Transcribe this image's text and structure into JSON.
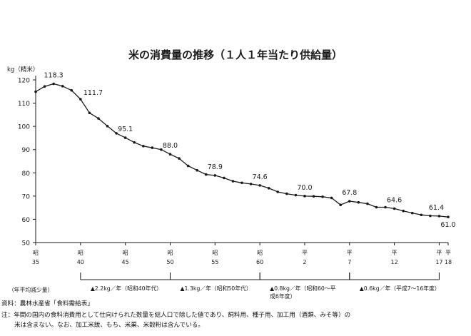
{
  "chart_data": {
    "type": "line",
    "title": "米の消費量の推移（１人１年当たり供給量）",
    "ylabel": "kg（精米）",
    "ylim": [
      50,
      120
    ],
    "yticks": [
      50,
      60,
      70,
      80,
      90,
      100,
      110,
      120
    ],
    "grid": false,
    "x_ticks": [
      {
        "era": "昭",
        "num": "35",
        "year": 1960
      },
      {
        "era": "昭",
        "num": "40",
        "year": 1965
      },
      {
        "era": "昭",
        "num": "45",
        "year": 1970
      },
      {
        "era": "昭",
        "num": "50",
        "year": 1975
      },
      {
        "era": "昭",
        "num": "55",
        "year": 1980
      },
      {
        "era": "昭",
        "num": "60",
        "year": 1985
      },
      {
        "era": "平",
        "num": "2",
        "year": 1990
      },
      {
        "era": "平",
        "num": "7",
        "year": 1995
      },
      {
        "era": "平",
        "num": "12",
        "year": 2000
      },
      {
        "era": "平",
        "num": "17",
        "year": 2005
      },
      {
        "era": "平",
        "num": "18",
        "year": 2006
      }
    ],
    "series": [
      {
        "x": [
          1960,
          1961,
          1962,
          1963,
          1964,
          1965,
          1966,
          1967,
          1968,
          1969,
          1970,
          1971,
          1972,
          1973,
          1974,
          1975,
          1976,
          1977,
          1978,
          1979,
          1980,
          1981,
          1982,
          1983,
          1984,
          1985,
          1986,
          1987,
          1988,
          1989,
          1990,
          1991,
          1992,
          1993,
          1994,
          1995,
          1996,
          1997,
          1998,
          1999,
          2000,
          2001,
          2002,
          2003,
          2004,
          2005,
          2006
        ],
        "y": [
          114.9,
          117.2,
          118.3,
          117.3,
          115.5,
          111.7,
          105.8,
          103.4,
          100.1,
          97.0,
          95.1,
          93.1,
          91.5,
          90.8,
          90.0,
          88.0,
          86.2,
          83.0,
          81.1,
          79.3,
          78.9,
          77.8,
          76.4,
          75.7,
          75.2,
          74.6,
          73.4,
          71.8,
          71.0,
          70.4,
          70.0,
          69.9,
          69.7,
          69.2,
          66.2,
          67.8,
          67.3,
          66.7,
          65.2,
          65.2,
          64.6,
          63.6,
          62.7,
          61.9,
          61.5,
          61.4,
          61.0
        ]
      }
    ],
    "data_labels": [
      {
        "x": 1962,
        "y": 118.3,
        "text": "118.3"
      },
      {
        "x": 1965,
        "y": 111.7,
        "text": "111.7"
      },
      {
        "x": 1970,
        "y": 95.1,
        "text": "95.1"
      },
      {
        "x": 1975,
        "y": 88.0,
        "text": "88.0"
      },
      {
        "x": 1980,
        "y": 78.9,
        "text": "78.9"
      },
      {
        "x": 1985,
        "y": 74.6,
        "text": "74.6"
      },
      {
        "x": 1990,
        "y": 70.0,
        "text": "70.0"
      },
      {
        "x": 1995,
        "y": 67.8,
        "text": "67.8"
      },
      {
        "x": 2000,
        "y": 64.6,
        "text": "64.6"
      },
      {
        "x": 2005,
        "y": 61.4,
        "text": "61.4"
      },
      {
        "x": 2006,
        "y": 61.0,
        "text": "61.0"
      }
    ],
    "periods_label": "（年平均減少量）",
    "periods": [
      {
        "from": 1965,
        "to": 1975,
        "lines": [
          "▲2.2kg／年（昭和40年代）"
        ]
      },
      {
        "from": 1975,
        "to": 1985,
        "lines": [
          "▲1.3kg／年（昭和50年代）"
        ]
      },
      {
        "from": 1985,
        "to": 1995,
        "lines": [
          "▲0.8kg／年（昭和60〜平",
          "成6年度）"
        ]
      },
      {
        "from": 1995,
        "to": 2005,
        "lines": [
          "▲0.6kg／年（平成7〜16年度）"
        ]
      }
    ]
  },
  "notes": {
    "source": "資料：農林水産省「食料需給表」",
    "note_line1": "注：年間の国内の食料消費用として仕向けられた数量を総人口で除した値であり、飼料用、種子用、加工用（酒類、みそ等）の",
    "note_line2": "米は含まない。なお、加工米飯、もち、米菓、米穀粉は含んでいる。"
  },
  "colors": {
    "line": "#1a1a1a",
    "text": "#111111",
    "background": "#ffffff"
  }
}
